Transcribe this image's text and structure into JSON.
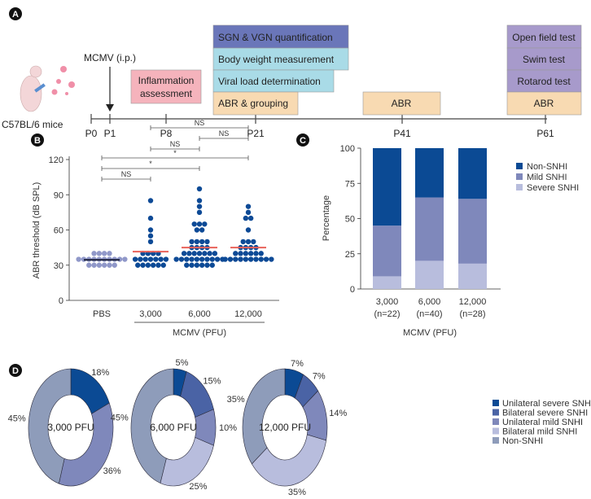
{
  "panels": {
    "a": "A",
    "b": "B",
    "c": "C",
    "d": "D"
  },
  "timeline": {
    "mouse_label": "C57BL/6 mice",
    "injection_label": "MCMV (i.p.)",
    "ticks": [
      "P0",
      "P1",
      "P8",
      "P21",
      "P41",
      "P61"
    ],
    "boxes": {
      "inflammation": [
        "Inflammation",
        "assessment"
      ],
      "sgn": "SGN & VGN quantification",
      "body": "Body weight measurement",
      "viral": "Viral load determination",
      "abr_group": "ABR & grouping",
      "abr41": "ABR",
      "open": "Open field test",
      "swim": "Swim test",
      "rotarod": "Rotarod test",
      "abr61": "ABR"
    },
    "colors": {
      "sgn": "#6a76b9",
      "cyan": "#a9dbe7",
      "peach": "#f8dab2",
      "pink": "#f5b3bc",
      "purple": "#a79acb"
    }
  },
  "chart_data": [
    {
      "type": "scatter",
      "panel": "B",
      "ylabel": "ABR threshold (dB SPL)",
      "xlabel": "MCMV (PFU)",
      "ylim": [
        0,
        120
      ],
      "yticks": [
        0,
        30,
        60,
        90,
        120
      ],
      "categories": [
        "PBS",
        "3,000",
        "6,000",
        "12,000"
      ],
      "groups": [
        {
          "name": "PBS",
          "color": "#9098c9",
          "mean": 34.5,
          "values": [
            40,
            40,
            40,
            40,
            35,
            35,
            35,
            35,
            35,
            35,
            35,
            35,
            35,
            35,
            30,
            30,
            30,
            30,
            30,
            30
          ]
        },
        {
          "name": "3,000",
          "color": "#0d4a96",
          "mean": 41.5,
          "values": [
            85,
            70,
            60,
            55,
            50,
            40,
            40,
            40,
            40,
            35,
            35,
            35,
            35,
            35,
            35,
            35,
            30,
            30,
            30,
            30,
            30,
            30
          ]
        },
        {
          "name": "6,000",
          "color": "#0d4a96",
          "mean": 45,
          "values": [
            95,
            85,
            80,
            75,
            65,
            65,
            65,
            60,
            60,
            50,
            50,
            50,
            50,
            45,
            45,
            45,
            45,
            40,
            40,
            40,
            40,
            40,
            40,
            40,
            35,
            35,
            35,
            35,
            35,
            35,
            35,
            35,
            35,
            35,
            30,
            30,
            30,
            30,
            30,
            30
          ]
        },
        {
          "name": "12,000",
          "color": "#0d4a96",
          "mean": 45,
          "values": [
            80,
            75,
            70,
            70,
            60,
            50,
            50,
            50,
            45,
            45,
            45,
            45,
            40,
            40,
            40,
            40,
            40,
            40,
            35,
            35,
            35,
            35,
            35,
            35,
            35,
            35,
            35,
            35
          ]
        }
      ],
      "significance": [
        {
          "from": 0,
          "to": 1,
          "label": "NS"
        },
        {
          "from": 0,
          "to": 2,
          "label": "*"
        },
        {
          "from": 0,
          "to": 3,
          "label": "*"
        },
        {
          "from": 1,
          "to": 2,
          "label": "NS"
        },
        {
          "from": 2,
          "to": 3,
          "label": "NS"
        },
        {
          "from": 1,
          "to": 3,
          "label": "NS"
        }
      ]
    },
    {
      "type": "bar",
      "panel": "C",
      "stacked": true,
      "ylabel": "Percentage",
      "xlabel": "MCMV (PFU)",
      "ylim": [
        0,
        100
      ],
      "yticks": [
        0,
        25,
        50,
        75,
        100
      ],
      "categories": [
        "3,000",
        "6,000",
        "12,000"
      ],
      "n_labels": [
        "(n=22)",
        "(n=40)",
        "(n=28)"
      ],
      "series": [
        {
          "name": "Severe SNHI",
          "color": "#b8bddd",
          "values": [
            9,
            20,
            18
          ]
        },
        {
          "name": "Mild SNHI",
          "color": "#7f88bb",
          "values": [
            36,
            45,
            46
          ]
        },
        {
          "name": "Non-SNHI",
          "color": "#0b4a94",
          "values": [
            55,
            35,
            36
          ]
        }
      ],
      "legend": "right"
    },
    {
      "type": "pie",
      "panel": "D",
      "legend": "right",
      "legend_entries": [
        "Unilateral severe SNHI",
        "Bilateral severe SNHI",
        "Unilateral mild SNHI",
        "Bilateral mild SNHI",
        "Non-SNHI"
      ],
      "colors": [
        "#0b4a94",
        "#4a63a5",
        "#7f88bb",
        "#b8bddd",
        "#8e9cba"
      ],
      "pies": [
        {
          "center": "3,000 PFU",
          "values": [
            18,
            0,
            36,
            0,
            45
          ],
          "labels": [
            "18%",
            "",
            "36%",
            "",
            "45%"
          ]
        },
        {
          "center": "6,000 PFU",
          "values": [
            5,
            15,
            10,
            25,
            45
          ],
          "labels": [
            "5%",
            "15%",
            "10%",
            "25%",
            "45%"
          ]
        },
        {
          "center": "12,000 PFU",
          "values": [
            7,
            7,
            14,
            35,
            35
          ],
          "labels": [
            "7%",
            "7%",
            "14%",
            "35%",
            "35%"
          ]
        }
      ]
    }
  ]
}
